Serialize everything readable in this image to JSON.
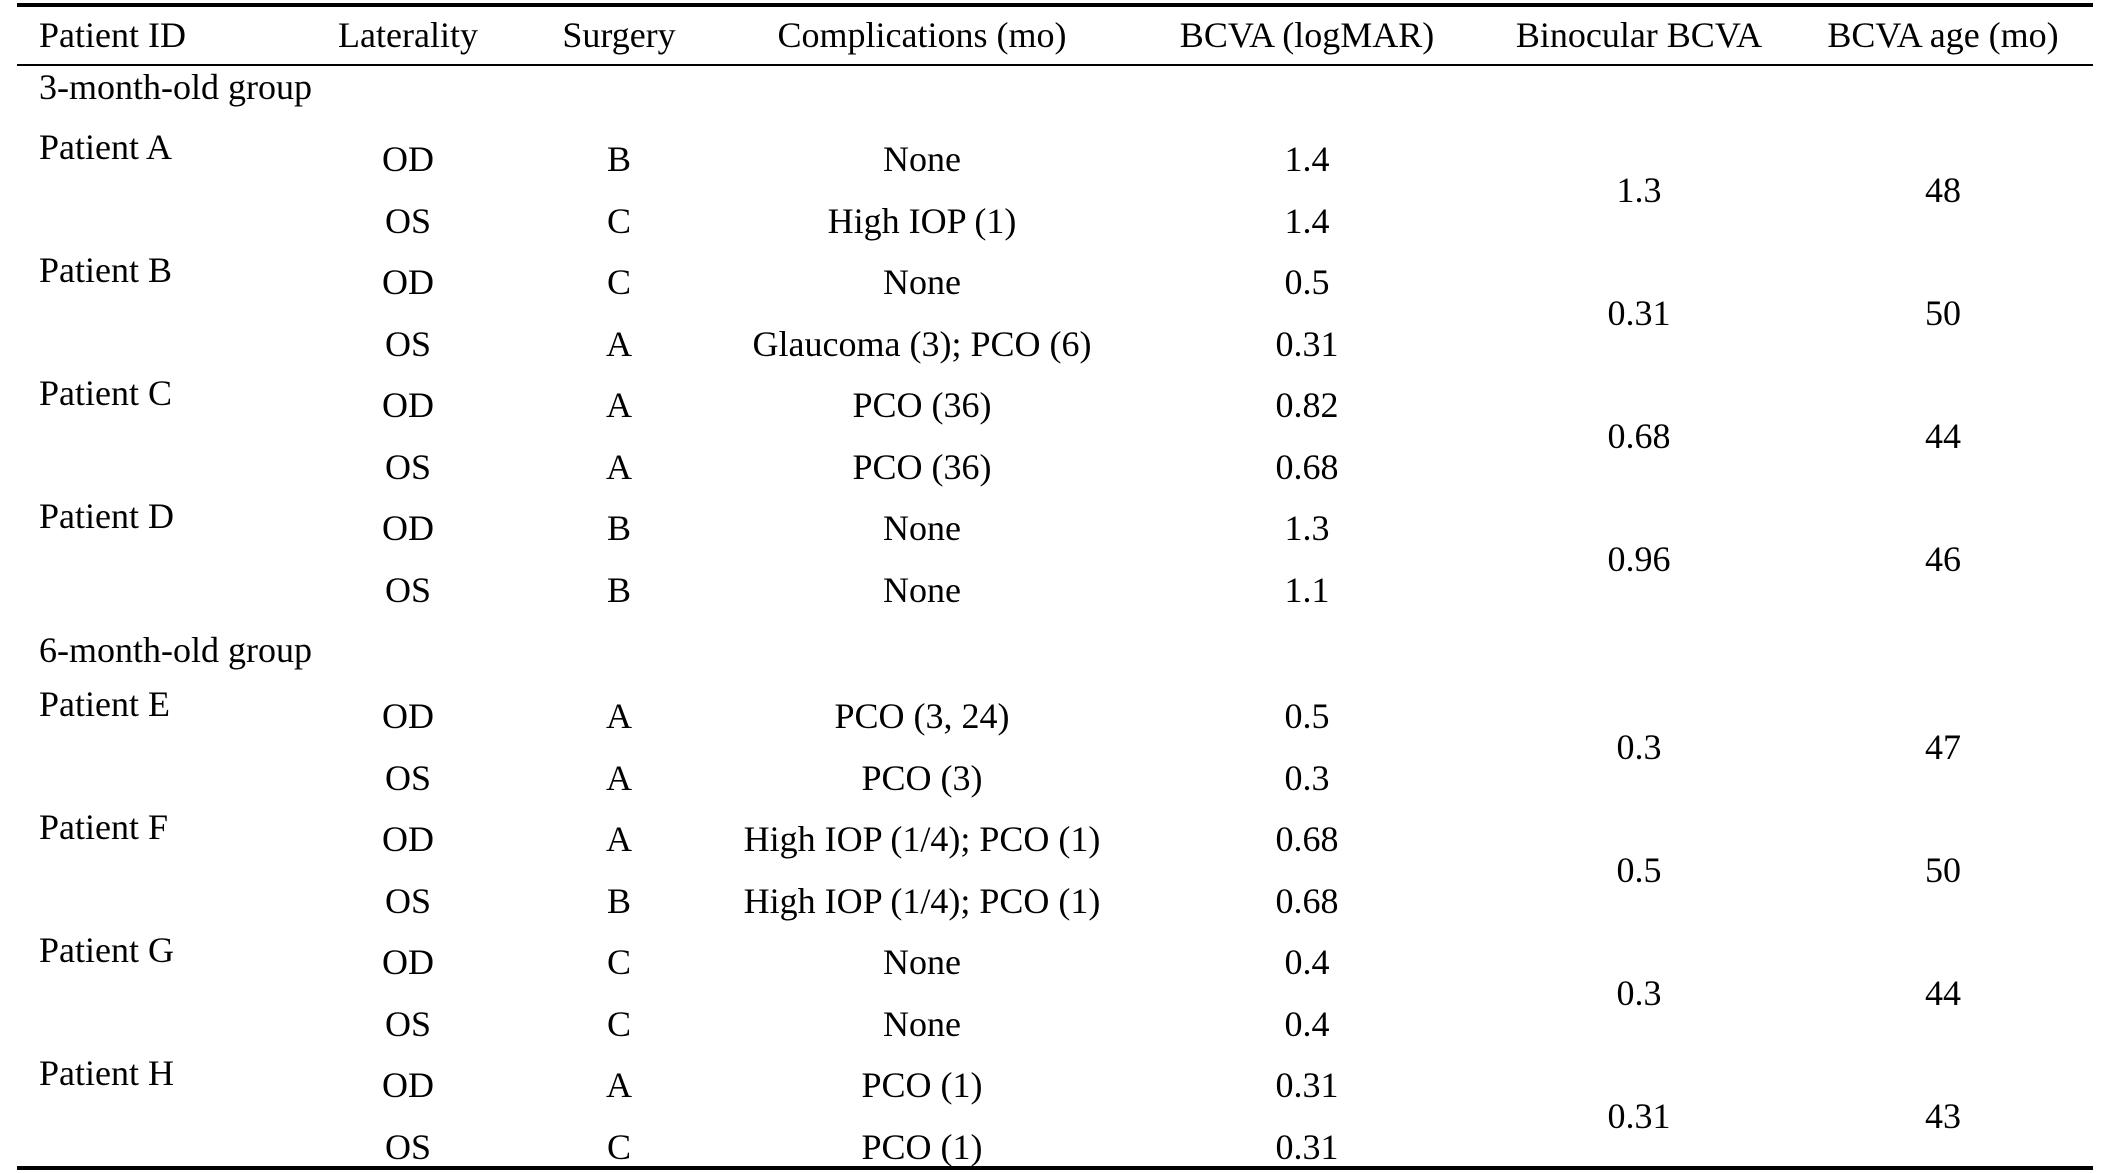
{
  "headers": [
    "Patient ID",
    "Laterality",
    "Surgery",
    "Complications (mo)",
    "BCVA (logMAR)",
    "Binocular BCVA",
    "BCVA age (mo)"
  ],
  "groups": [
    {
      "label": "3-month-old group",
      "patients": [
        {
          "id": "Patient A",
          "binocular": "1.3",
          "age": "48",
          "eyes": [
            {
              "lat": "OD",
              "surgery": "B",
              "comp": "None",
              "bcva": "1.4"
            },
            {
              "lat": "OS",
              "surgery": "C",
              "comp": "High IOP (1)",
              "bcva": "1.4"
            }
          ]
        },
        {
          "id": "Patient B",
          "binocular": "0.31",
          "age": "50",
          "eyes": [
            {
              "lat": "OD",
              "surgery": "C",
              "comp": "None",
              "bcva": "0.5"
            },
            {
              "lat": "OS",
              "surgery": "A",
              "comp": "Glaucoma (3); PCO (6)",
              "bcva": "0.31"
            }
          ]
        },
        {
          "id": "Patient C",
          "binocular": "0.68",
          "age": "44",
          "eyes": [
            {
              "lat": "OD",
              "surgery": "A",
              "comp": "PCO (36)",
              "bcva": "0.82"
            },
            {
              "lat": "OS",
              "surgery": "A",
              "comp": "PCO (36)",
              "bcva": "0.68"
            }
          ]
        },
        {
          "id": "Patient D",
          "binocular": "0.96",
          "age": "46",
          "eyes": [
            {
              "lat": "OD",
              "surgery": "B",
              "comp": "None",
              "bcva": "1.3"
            },
            {
              "lat": "OS",
              "surgery": "B",
              "comp": "None",
              "bcva": "1.1"
            }
          ]
        }
      ]
    },
    {
      "label": "6-month-old group",
      "patients": [
        {
          "id": "Patient E",
          "binocular": "0.3",
          "age": "47",
          "eyes": [
            {
              "lat": "OD",
              "surgery": "A",
              "comp": "PCO (3, 24)",
              "bcva": "0.5"
            },
            {
              "lat": "OS",
              "surgery": "A",
              "comp": "PCO (3)",
              "bcva": "0.3"
            }
          ]
        },
        {
          "id": "Patient F",
          "binocular": "0.5",
          "age": "50",
          "eyes": [
            {
              "lat": "OD",
              "surgery": "A",
              "comp": "High IOP (1/4); PCO (1)",
              "bcva": "0.68"
            },
            {
              "lat": "OS",
              "surgery": "B",
              "comp": "High IOP (1/4); PCO (1)",
              "bcva": "0.68"
            }
          ]
        },
        {
          "id": "Patient G",
          "binocular": "0.3",
          "age": "44",
          "eyes": [
            {
              "lat": "OD",
              "surgery": "C",
              "comp": "None",
              "bcva": "0.4"
            },
            {
              "lat": "OS",
              "surgery": "C",
              "comp": "None",
              "bcva": "0.4"
            }
          ]
        },
        {
          "id": "Patient H",
          "binocular": "0.31",
          "age": "43",
          "eyes": [
            {
              "lat": "OD",
              "surgery": "A",
              "comp": "PCO (1)",
              "bcva": "0.31"
            },
            {
              "lat": "OS",
              "surgery": "C",
              "comp": "PCO (1)",
              "bcva": "0.31"
            }
          ]
        }
      ]
    }
  ]
}
